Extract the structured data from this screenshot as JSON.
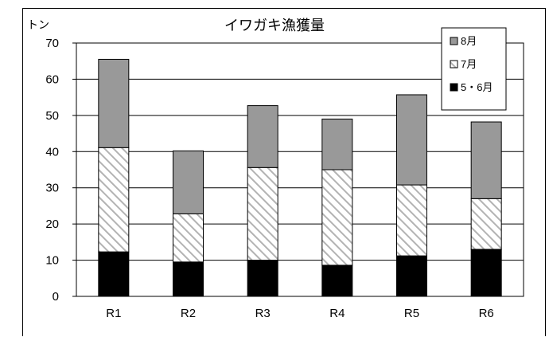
{
  "chart_data": {
    "type": "bar",
    "stacked": true,
    "title": "イワガキ漁獲量",
    "ylabel": "トン",
    "xlabel": "",
    "ylim": [
      0,
      70
    ],
    "yticks": [
      0,
      10,
      20,
      30,
      40,
      50,
      60,
      70
    ],
    "grid": true,
    "legend_position": "top-right",
    "categories": [
      "R1",
      "R2",
      "R3",
      "R4",
      "R5",
      "R6"
    ],
    "series": [
      {
        "name": "5・6月",
        "values": [
          12.3,
          9.5,
          10.0,
          8.6,
          11.2,
          13.0
        ],
        "fill": "#000000",
        "pattern": "solid"
      },
      {
        "name": "7月",
        "values": [
          28.8,
          13.3,
          25.6,
          26.4,
          19.6,
          14.0
        ],
        "fill": "#ffffff",
        "pattern": "hatch"
      },
      {
        "name": "8月",
        "values": [
          24.4,
          17.4,
          17.1,
          14.0,
          24.9,
          21.2
        ],
        "fill": "#999999",
        "pattern": "solid"
      }
    ]
  }
}
